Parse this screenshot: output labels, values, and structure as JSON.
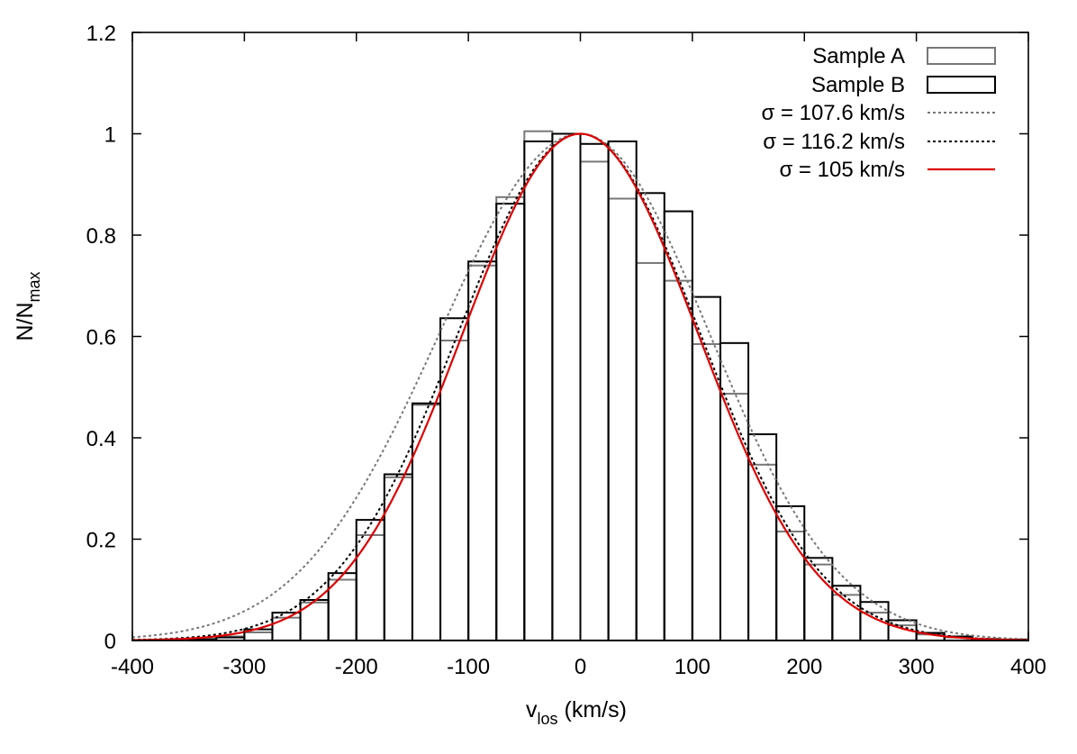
{
  "chart_data": {
    "type": "bar",
    "title": "",
    "xlabel": "v_los (km/s)",
    "xlabel_main": "v",
    "xlabel_sub": "los",
    "xlabel_rest": " (km/s)",
    "ylabel": "N/N_max",
    "ylabel_main": "N/N",
    "ylabel_sub": "max",
    "xlim": [
      -400,
      400
    ],
    "ylim": [
      0,
      1.2
    ],
    "xticks": [
      -400,
      -300,
      -200,
      -100,
      0,
      100,
      200,
      300,
      400
    ],
    "xtick_labels": [
      "-400",
      "-300",
      "-200",
      "-100",
      "0",
      "100",
      "200",
      "300",
      "400"
    ],
    "yticks": [
      0,
      0.2,
      0.4,
      0.6,
      0.8,
      1.0,
      1.2
    ],
    "ytick_labels": [
      "0",
      "0.2",
      "0.4",
      "0.6",
      "0.8",
      "1",
      "1.2"
    ],
    "bin_width": 25,
    "bin_centers": [
      -387.5,
      -362.5,
      -337.5,
      -312.5,
      -287.5,
      -262.5,
      -237.5,
      -212.5,
      -187.5,
      -162.5,
      -137.5,
      -112.5,
      -87.5,
      -62.5,
      -37.5,
      -12.5,
      12.5,
      37.5,
      62.5,
      87.5,
      112.5,
      137.5,
      162.5,
      187.5,
      212.5,
      237.5,
      262.5,
      287.5,
      312.5,
      337.5,
      362.5,
      387.5
    ],
    "series": [
      {
        "name": "Sample A",
        "kind": "histogram",
        "color": "#777777",
        "values": [
          0.001,
          0.002,
          0.004,
          0.008,
          0.016,
          0.045,
          0.075,
          0.12,
          0.208,
          0.322,
          0.465,
          0.592,
          0.74,
          0.875,
          1.005,
          1.0,
          0.945,
          0.872,
          0.745,
          0.71,
          0.585,
          0.487,
          0.347,
          0.215,
          0.15,
          0.09,
          0.055,
          0.03,
          0.012,
          0.006,
          0.002,
          0.001
        ]
      },
      {
        "name": "Sample B",
        "kind": "histogram",
        "color": "#000000",
        "values": [
          0.0,
          0.0,
          0.002,
          0.006,
          0.022,
          0.055,
          0.08,
          0.133,
          0.238,
          0.328,
          0.468,
          0.636,
          0.748,
          0.862,
          0.985,
          1.0,
          0.98,
          0.985,
          0.883,
          0.847,
          0.678,
          0.587,
          0.407,
          0.265,
          0.163,
          0.108,
          0.076,
          0.04,
          0.015,
          0.008,
          0.003,
          0.002
        ]
      },
      {
        "name": "σ = 107.6 km/s",
        "kind": "gaussian",
        "mu": 0,
        "sigma": 107.6,
        "color": "#777777",
        "dash": "dotted",
        "sigma_left": 125.7,
        "sigma_right": 115.2
      },
      {
        "name": "σ = 116.2 km/s",
        "kind": "gaussian",
        "mu": 0,
        "sigma": 116.2,
        "color": "#000000",
        "dash": "dotted",
        "sigma_left": 109.2,
        "sigma_right": 107.0
      },
      {
        "name": "σ = 105 km/s",
        "kind": "gaussian",
        "mu": 0,
        "sigma": 105,
        "color": "#dd0000",
        "dash": "solid",
        "sigma_left": 105.0,
        "sigma_right": 105.0
      }
    ],
    "legend": {
      "position": "top-right",
      "entries": [
        "Sample A",
        "Sample B",
        "σ = 107.6 km/s",
        "σ = 116.2 km/s",
        "σ = 105 km/s"
      ]
    },
    "grid": false
  }
}
